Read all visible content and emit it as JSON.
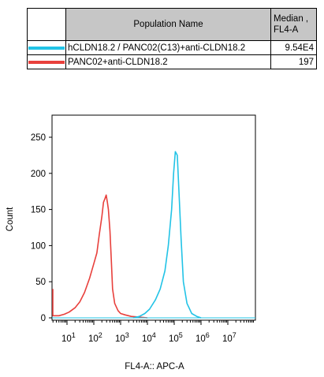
{
  "legend_table": {
    "header_name": "Population Name",
    "header_median_line1": "Median ,",
    "header_median_line2": "FL4-A",
    "rows": [
      {
        "name": "hCLDN18.2 / PANC02(C13)+anti-CLDN18.2",
        "median": "9.54E4",
        "color": "#22c3e6"
      },
      {
        "name": "PANC02+anti-CLDN18.2",
        "median": "197",
        "color": "#e8403c"
      }
    ]
  },
  "chart_data": {
    "type": "line",
    "title": "",
    "xlabel": "FL4-A:: APC-A",
    "ylabel": "Count",
    "x_scale": "log",
    "x_major_ticks": [
      {
        "base": "10",
        "exp": "1"
      },
      {
        "base": "10",
        "exp": "2"
      },
      {
        "base": "10",
        "exp": "3"
      },
      {
        "base": "10",
        "exp": "4"
      },
      {
        "base": "10",
        "exp": "5"
      },
      {
        "base": "10",
        "exp": "6"
      },
      {
        "base": "10",
        "exp": "7"
      }
    ],
    "ylim": [
      0,
      275
    ],
    "y_ticks": [
      "0",
      "50",
      "100",
      "150",
      "200",
      "250"
    ],
    "series": [
      {
        "color": "#e8403c",
        "x": [
          1,
          1.3,
          1.6,
          2,
          3,
          5,
          8,
          12,
          20,
          30,
          45,
          70,
          100,
          130,
          160,
          200,
          230,
          260,
          290,
          320,
          350,
          400,
          450,
          500,
          600,
          800,
          1000,
          1500,
          2500,
          5000,
          10000
        ],
        "y": [
          40,
          15,
          8,
          4,
          3,
          3,
          5,
          8,
          14,
          22,
          35,
          55,
          75,
          90,
          115,
          140,
          160,
          165,
          170,
          160,
          150,
          120,
          80,
          40,
          20,
          10,
          6,
          4,
          2,
          1,
          0
        ]
      },
      {
        "color": "#22c3e6",
        "x": [
          3000,
          5000,
          8000,
          12000,
          20000,
          30000,
          45000,
          60000,
          80000,
          95000,
          110000,
          130000,
          150000,
          180000,
          220000,
          300000,
          450000,
          700000,
          1000000
        ],
        "y": [
          0,
          2,
          6,
          12,
          25,
          40,
          65,
          100,
          150,
          200,
          230,
          225,
          175,
          110,
          50,
          20,
          6,
          2,
          0
        ]
      }
    ]
  }
}
